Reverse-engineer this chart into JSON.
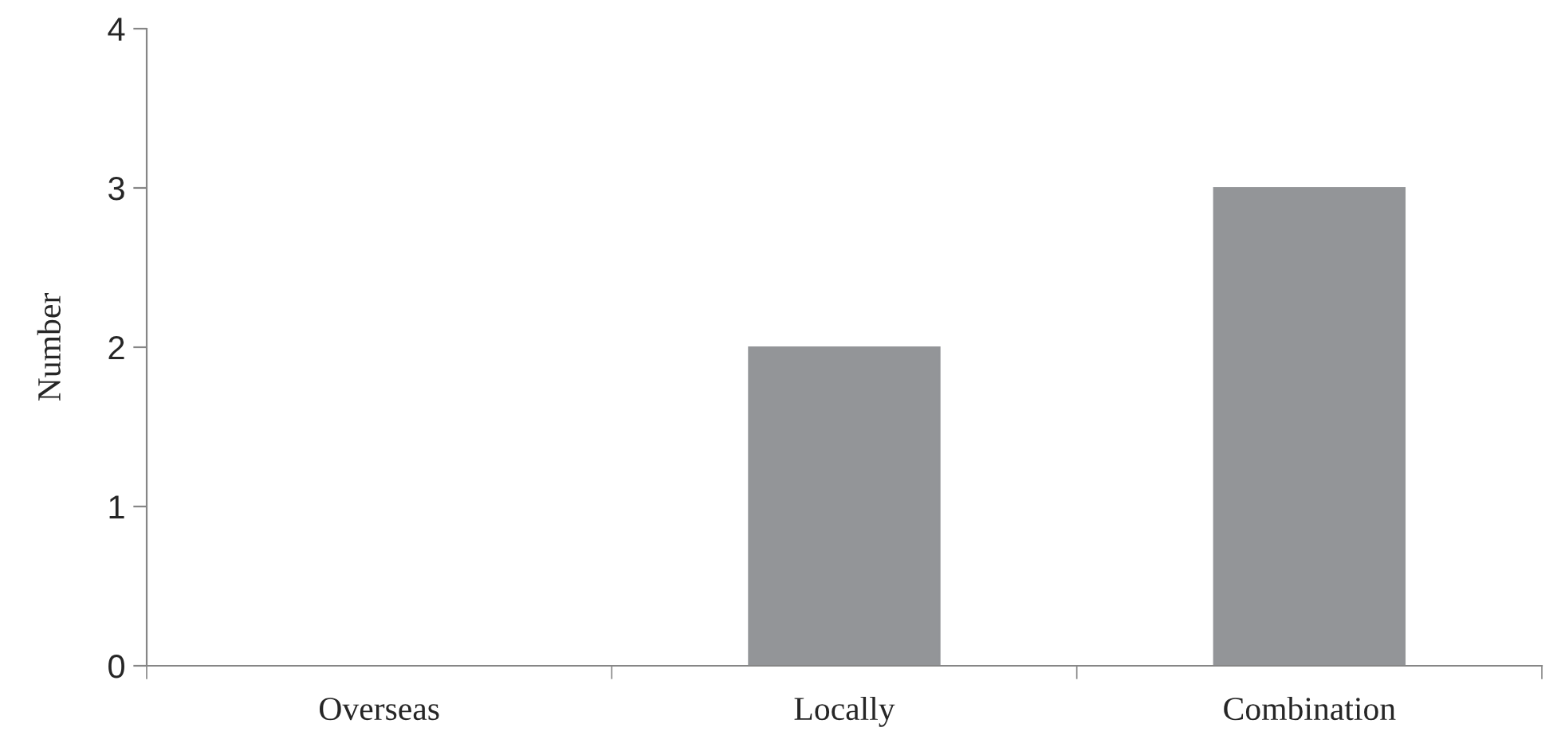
{
  "chart_data": {
    "type": "bar",
    "ylabel": "Number",
    "categories": [
      "Overseas",
      "Locally",
      "Combination"
    ],
    "values": [
      0,
      2,
      3
    ],
    "color": "#939598",
    "ylim": [
      0,
      4
    ],
    "yticks": [
      0,
      1,
      2,
      3,
      4
    ],
    "grid": false,
    "legend": false
  }
}
